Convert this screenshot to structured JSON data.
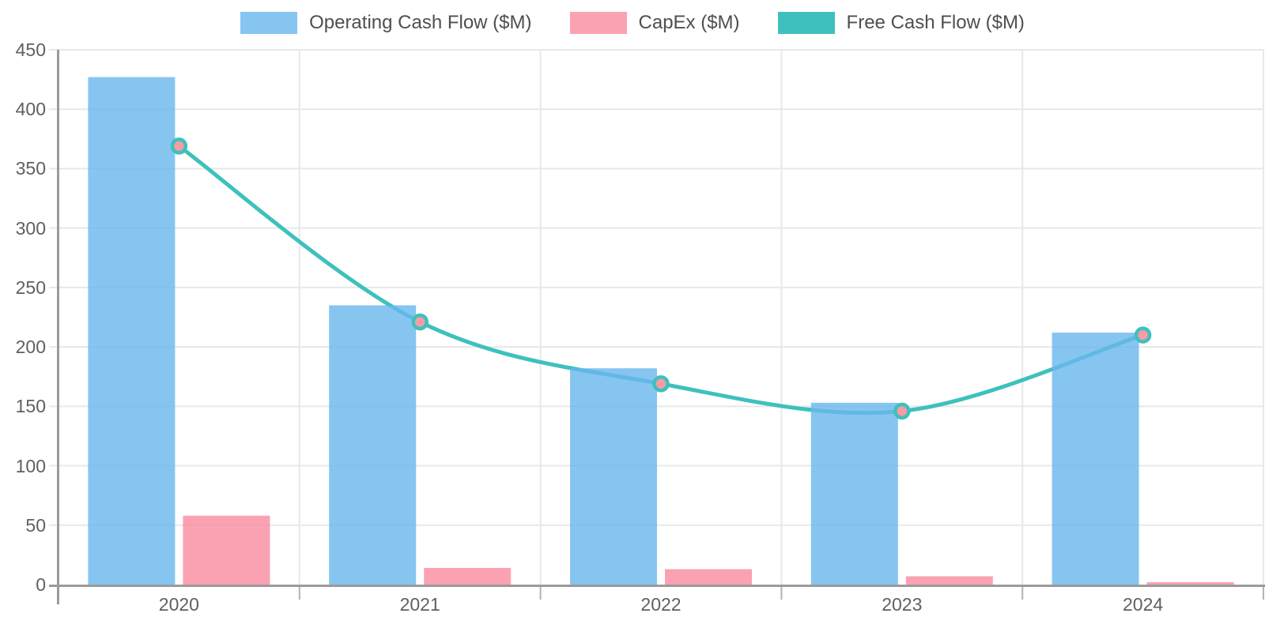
{
  "chart_data": {
    "type": "bar",
    "subtype": "combo-bar-line",
    "categories": [
      "2020",
      "2021",
      "2022",
      "2023",
      "2024"
    ],
    "series": [
      {
        "name": "Operating Cash Flow ($M)",
        "render": "bar",
        "color": "#87C5F1",
        "values": [
          427,
          235,
          182,
          153,
          212
        ]
      },
      {
        "name": "CapEx ($M)",
        "render": "bar",
        "color": "#FAA2B2",
        "values": [
          58,
          14,
          13,
          7,
          2
        ]
      },
      {
        "name": "Free Cash Flow ($M)",
        "render": "line",
        "color": "#3EC1BC",
        "point_color": "#F59CA5",
        "values": [
          369,
          221,
          169,
          146,
          210
        ]
      }
    ],
    "ylim": [
      0,
      450
    ],
    "ytick_step": 50,
    "y_tick_labels": [
      "450",
      "400",
      "350",
      "300",
      "250",
      "200",
      "150",
      "100",
      "50",
      "0"
    ],
    "grid": true,
    "legend_position": "top",
    "grid_color": "#e8e8e8",
    "axis_color": "#9a9a9a",
    "tick_color": "#b3b3b3",
    "tick_label_color": "#606060",
    "legend_text_color": "#4f4f4f"
  }
}
